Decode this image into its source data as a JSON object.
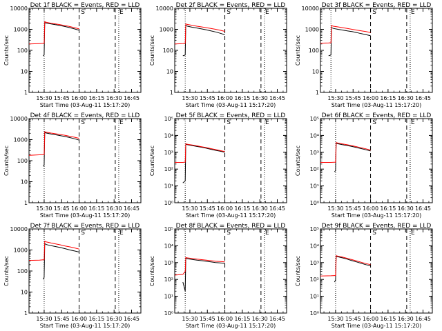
{
  "figure": {
    "xlabel": "Start Time (03-Aug-11 15:17:20)",
    "ylabel": "Counts/sec"
  },
  "colors": {
    "events": "#000000",
    "lld": "#ff0000",
    "axes": "#000000"
  },
  "chart_data": [
    {
      "type": "line",
      "title": "Det 1f BLACK = Events, RED = LLD",
      "yscale": "log",
      "ylim": [
        1,
        10000
      ],
      "ytick_format": "plain",
      "xlim": [
        "15:17",
        "16:53"
      ],
      "xticks": [
        "15:30",
        "15:45",
        "16:00",
        "16:15",
        "16:30",
        "16:45"
      ],
      "markers": {
        "dotted": [
          "15:30",
          "16:34"
        ],
        "dashed": [
          "16:00",
          "16:31"
        ],
        "letters": [
          [
            "S",
            "16:01"
          ],
          [
            "E",
            "16:34"
          ]
        ]
      },
      "series": [
        {
          "x": [
            "15:17",
            "15:26",
            "15:29",
            "15:30",
            "15:30.5",
            "15:32",
            "15:36",
            "15:40",
            "15:44",
            "15:48",
            "15:52",
            "15:56",
            "16:00"
          ],
          "y": [
            null,
            null,
            55,
            60,
            2100,
            1950,
            1800,
            1650,
            1500,
            1350,
            1200,
            1050,
            900
          ],
          "color": "#000000"
        },
        {
          "x": [
            "15:17",
            "15:26",
            "15:29",
            "15:30",
            "15:30.5",
            "15:32",
            "15:36",
            "15:40",
            "15:44",
            "15:48",
            "15:52",
            "15:56",
            "16:00"
          ],
          "y": [
            200,
            210,
            215,
            215,
            2300,
            2150,
            1950,
            1800,
            1650,
            1500,
            1350,
            1200,
            1050
          ],
          "color": "#ff0000"
        }
      ]
    },
    {
      "type": "line",
      "title": "Det 2f BLACK = Events, RED = LLD",
      "yscale": "log",
      "ylim": [
        1,
        10000
      ],
      "ytick_format": "plain",
      "xlim": [
        "15:17",
        "16:53"
      ],
      "xticks": [
        "15:30",
        "15:45",
        "16:00",
        "16:15",
        "16:30",
        "16:45"
      ],
      "markers": {
        "dotted": [
          "15:26",
          "16:34"
        ],
        "dashed": [
          "16:00",
          "16:31"
        ],
        "letters": [
          [
            "S",
            "16:01"
          ],
          [
            "E",
            "16:34"
          ]
        ]
      },
      "series": [
        {
          "x": [
            "15:17",
            "15:24",
            "15:26",
            "15:26.5",
            "15:28",
            "15:32",
            "15:36",
            "15:40",
            "15:44",
            "15:48",
            "15:52",
            "15:56",
            "16:00"
          ],
          "y": [
            null,
            55,
            60,
            1500,
            1400,
            1250,
            1150,
            1050,
            950,
            850,
            750,
            650,
            550
          ],
          "color": "#000000"
        },
        {
          "x": [
            "15:17",
            "15:24",
            "15:26",
            "15:26.5",
            "15:28",
            "15:32",
            "15:36",
            "15:40",
            "15:44",
            "15:48",
            "15:52",
            "15:56",
            "16:00"
          ],
          "y": [
            200,
            210,
            215,
            1800,
            1700,
            1550,
            1400,
            1300,
            1200,
            1100,
            1000,
            900,
            800
          ],
          "color": "#ff0000"
        }
      ]
    },
    {
      "type": "line",
      "title": "Det 3f BLACK = Events, RED = LLD",
      "yscale": "log",
      "ylim": [
        1,
        10000
      ],
      "ytick_format": "plain",
      "xlim": [
        "15:17",
        "16:53"
      ],
      "xticks": [
        "15:30",
        "15:45",
        "16:00",
        "16:15",
        "16:30",
        "16:45"
      ],
      "markers": {
        "dotted": [
          "15:26",
          "16:34"
        ],
        "dashed": [
          "16:00",
          "16:31"
        ],
        "letters": [
          [
            "S",
            "16:01"
          ],
          [
            "E",
            "16:34"
          ]
        ]
      },
      "series": [
        {
          "x": [
            "15:17",
            "15:24",
            "15:26",
            "15:26.5",
            "15:28",
            "15:32",
            "15:36",
            "15:40",
            "15:44",
            "15:48",
            "15:52",
            "15:56",
            "16:00"
          ],
          "y": [
            null,
            55,
            60,
            1200,
            1100,
            1000,
            920,
            850,
            780,
            700,
            620,
            560,
            500
          ],
          "color": "#000000"
        },
        {
          "x": [
            "15:17",
            "15:24",
            "15:26",
            "15:26.5",
            "15:28",
            "15:32",
            "15:36",
            "15:40",
            "15:44",
            "15:48",
            "15:52",
            "15:56",
            "16:00"
          ],
          "y": [
            220,
            225,
            230,
            1500,
            1400,
            1300,
            1200,
            1100,
            1000,
            920,
            850,
            780,
            700
          ],
          "color": "#ff0000"
        }
      ]
    },
    {
      "type": "line",
      "title": "Det 4f BLACK = Events, RED = LLD",
      "yscale": "log",
      "ylim": [
        1,
        10000
      ],
      "ytick_format": "plain",
      "xlim": [
        "15:17",
        "16:53"
      ],
      "xticks": [
        "15:30",
        "15:45",
        "16:00",
        "16:15",
        "16:30",
        "16:45"
      ],
      "markers": {
        "dotted": [
          "15:30",
          "16:34"
        ],
        "dashed": [
          "16:00",
          "16:31"
        ],
        "letters": [
          [
            "S",
            "16:01"
          ],
          [
            "E",
            "16:34"
          ]
        ]
      },
      "series": [
        {
          "x": [
            "15:17",
            "15:26",
            "15:29",
            "15:30",
            "15:30.5",
            "15:32",
            "15:36",
            "15:40",
            "15:44",
            "15:48",
            "15:52",
            "15:56",
            "16:00"
          ],
          "y": [
            null,
            null,
            55,
            60,
            2200,
            2050,
            1850,
            1700,
            1550,
            1400,
            1250,
            1100,
            950
          ],
          "color": "#000000"
        },
        {
          "x": [
            "15:17",
            "15:26",
            "15:29",
            "15:30",
            "15:30.5",
            "15:32",
            "15:36",
            "15:40",
            "15:44",
            "15:48",
            "15:52",
            "15:56",
            "16:00"
          ],
          "y": [
            180,
            190,
            195,
            195,
            2400,
            2250,
            2050,
            1900,
            1750,
            1600,
            1450,
            1300,
            1150
          ],
          "color": "#ff0000"
        }
      ]
    },
    {
      "type": "line",
      "title": "Det 5f BLACK = Events, RED = LLD",
      "yscale": "log",
      "ylim": [
        1,
        100000
      ],
      "ytick_format": "power",
      "xlim": [
        "15:17",
        "16:53"
      ],
      "xticks": [
        "15:30",
        "15:45",
        "16:00",
        "16:15",
        "16:30",
        "16:45"
      ],
      "markers": {
        "dotted": [
          "15:26",
          "16:34"
        ],
        "dashed": [
          "16:00",
          "16:31"
        ],
        "letters": [
          [
            "S",
            "16:01"
          ],
          [
            "E",
            "16:34"
          ]
        ]
      },
      "series": [
        {
          "x": [
            "15:17",
            "15:24",
            "15:26",
            "15:26.5",
            "15:28",
            "15:32",
            "15:36",
            "15:40",
            "15:44",
            "15:48",
            "15:52",
            "15:56",
            "16:00"
          ],
          "y": [
            null,
            15,
            20,
            3000,
            2800,
            2500,
            2200,
            2000,
            1750,
            1500,
            1300,
            1150,
            1000
          ],
          "color": "#000000"
        },
        {
          "x": [
            "15:17",
            "15:24",
            "15:26",
            "15:26.5",
            "15:28",
            "15:32",
            "15:36",
            "15:40",
            "15:44",
            "15:48",
            "15:52",
            "15:56",
            "16:00"
          ],
          "y": [
            250,
            250,
            260,
            3200,
            3000,
            2700,
            2400,
            2150,
            1900,
            1650,
            1450,
            1250,
            1100
          ],
          "color": "#ff0000"
        }
      ]
    },
    {
      "type": "line",
      "title": "Det 6f BLACK = Events, RED = LLD",
      "yscale": "log",
      "ylim": [
        1,
        100000
      ],
      "ytick_format": "power",
      "xlim": [
        "15:17",
        "16:53"
      ],
      "xticks": [
        "15:30",
        "15:45",
        "16:00",
        "16:15",
        "16:30",
        "16:45"
      ],
      "markers": {
        "dotted": [
          "15:30",
          "16:34"
        ],
        "dashed": [
          "16:00",
          "16:31"
        ],
        "letters": [
          [
            "S",
            "16:01"
          ],
          [
            "E",
            "16:34"
          ]
        ]
      },
      "series": [
        {
          "x": [
            "15:17",
            "15:26",
            "15:29",
            "15:30",
            "15:30.5",
            "15:32",
            "15:36",
            "15:40",
            "15:44",
            "15:48",
            "15:52",
            "15:56",
            "16:00"
          ],
          "y": [
            null,
            null,
            70,
            80,
            3500,
            3200,
            2800,
            2500,
            2200,
            1900,
            1650,
            1400,
            1200
          ],
          "color": "#000000"
        },
        {
          "x": [
            "15:17",
            "15:26",
            "15:29",
            "15:30",
            "15:30.5",
            "15:32",
            "15:36",
            "15:40",
            "15:44",
            "15:48",
            "15:52",
            "15:56",
            "16:00"
          ],
          "y": [
            250,
            250,
            255,
            255,
            3800,
            3500,
            3100,
            2800,
            2450,
            2150,
            1850,
            1600,
            1350
          ],
          "color": "#ff0000"
        }
      ]
    },
    {
      "type": "line",
      "title": "Det 7f BLACK = Events, RED = LLD",
      "yscale": "log",
      "ylim": [
        1,
        10000
      ],
      "ytick_format": "plain",
      "xlim": [
        "15:17",
        "16:53"
      ],
      "xticks": [
        "15:30",
        "15:45",
        "16:00",
        "16:15",
        "16:30",
        "16:45"
      ],
      "markers": {
        "dotted": [
          "15:30",
          "16:34"
        ],
        "dashed": [
          "16:00",
          "16:31"
        ],
        "letters": [
          [
            "S",
            "16:01"
          ],
          [
            "E",
            "16:34"
          ]
        ]
      },
      "series": [
        {
          "x": [
            "15:17",
            "15:26",
            "15:29",
            "15:30",
            "15:30.5",
            "15:32",
            "15:36",
            "15:40",
            "15:44",
            "15:48",
            "15:52",
            "15:56",
            "16:00"
          ],
          "y": [
            null,
            null,
            40,
            50,
            2000,
            1800,
            1600,
            1450,
            1300,
            1150,
            1000,
            900,
            800
          ],
          "color": "#000000"
        },
        {
          "x": [
            "15:17",
            "15:26",
            "15:29",
            "15:30",
            "15:30.5",
            "15:32",
            "15:36",
            "15:40",
            "15:44",
            "15:48",
            "15:52",
            "15:56",
            "16:00"
          ],
          "y": [
            320,
            330,
            340,
            340,
            2600,
            2400,
            2150,
            1950,
            1750,
            1550,
            1400,
            1250,
            1100
          ],
          "color": "#ff0000"
        }
      ]
    },
    {
      "type": "line",
      "title": "Det 8f BLACK = Events, RED = LLD",
      "yscale": "log",
      "ylim": [
        1,
        100000
      ],
      "ytick_format": "power",
      "xlim": [
        "15:17",
        "16:53"
      ],
      "xticks": [
        "15:30",
        "15:45",
        "16:00",
        "16:15",
        "16:30",
        "16:45"
      ],
      "markers": {
        "dotted": [
          "15:26",
          "16:34"
        ],
        "dashed": [
          "16:00",
          "16:31"
        ],
        "letters": [
          [
            "S",
            "16:01"
          ],
          [
            "E",
            "16:34"
          ]
        ]
      },
      "series": [
        {
          "x": [
            "15:17",
            "15:24",
            "15:26",
            "15:26.5",
            "15:28",
            "15:32",
            "15:36",
            "15:40",
            "15:44",
            "15:48",
            "15:52",
            "15:56",
            "16:00"
          ],
          "y": [
            null,
            70,
            20,
            1800,
            1700,
            1550,
            1400,
            1300,
            1200,
            1100,
            1000,
            950,
            900
          ],
          "color": "#000000"
        },
        {
          "x": [
            "15:17",
            "15:24",
            "15:26",
            "15:26.5",
            "15:28",
            "15:32",
            "15:36",
            "15:40",
            "15:44",
            "15:48",
            "15:52",
            "15:56",
            "16:00"
          ],
          "y": [
            180,
            200,
            300,
            2000,
            1900,
            1750,
            1600,
            1500,
            1400,
            1300,
            1200,
            1150,
            1100
          ],
          "color": "#ff0000"
        }
      ]
    },
    {
      "type": "line",
      "title": "Det 9f BLACK = Events, RED = LLD",
      "yscale": "log",
      "ylim": [
        1,
        100000
      ],
      "ytick_format": "power",
      "xlim": [
        "15:17",
        "16:53"
      ],
      "xticks": [
        "15:30",
        "15:45",
        "16:00",
        "16:15",
        "16:30",
        "16:45"
      ],
      "markers": {
        "dotted": [
          "15:30",
          "16:34"
        ],
        "dashed": [
          "16:00",
          "16:31"
        ],
        "letters": [
          [
            "S",
            "16:01"
          ],
          [
            "E",
            "16:34"
          ]
        ]
      },
      "series": [
        {
          "x": [
            "15:17",
            "15:26",
            "15:29",
            "15:30",
            "15:30.5",
            "15:32",
            "15:36",
            "15:40",
            "15:44",
            "15:48",
            "15:52",
            "15:56",
            "16:00"
          ],
          "y": [
            null,
            null,
            70,
            90,
            2300,
            2200,
            1900,
            1600,
            1300,
            1100,
            900,
            750,
            650
          ],
          "color": "#000000"
        },
        {
          "x": [
            "15:17",
            "15:26",
            "15:29",
            "15:30",
            "15:30.5",
            "15:32",
            "15:36",
            "15:40",
            "15:44",
            "15:48",
            "15:52",
            "15:56",
            "16:00"
          ],
          "y": [
            160,
            165,
            170,
            170,
            2600,
            2400,
            2100,
            1800,
            1500,
            1250,
            1050,
            880,
            750
          ],
          "color": "#ff0000"
        }
      ]
    }
  ]
}
